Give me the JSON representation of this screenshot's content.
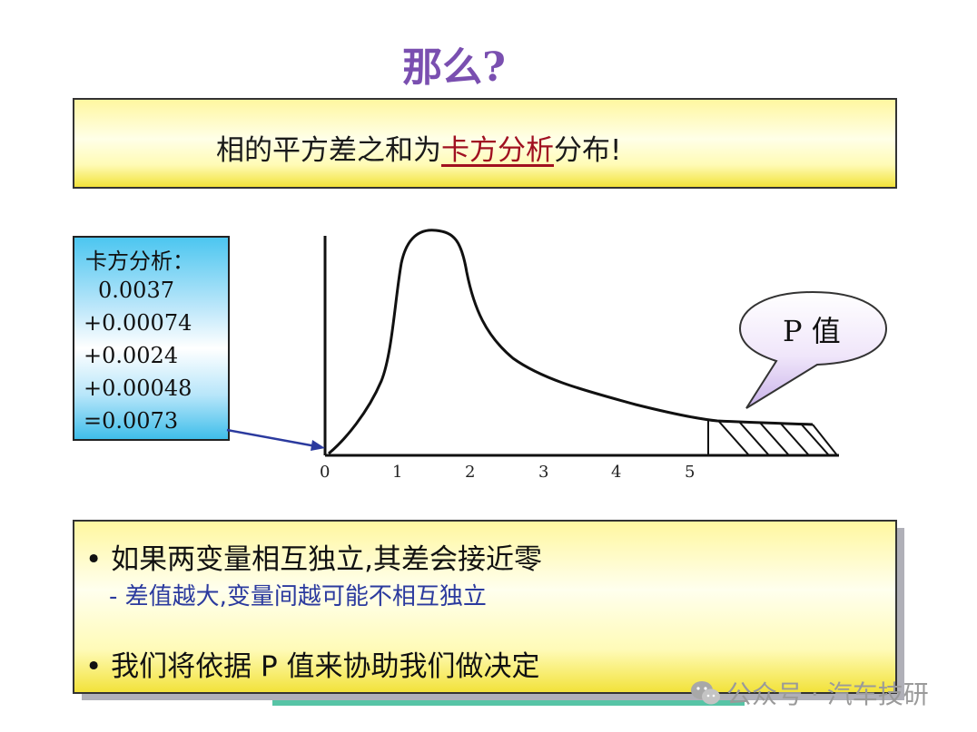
{
  "title": "那么?",
  "banner": {
    "prefix": "相的平方差之和为",
    "highlight": "卡方分析",
    "suffix": "分布!"
  },
  "chi_box": {
    "heading": "卡方分析：",
    "lines": [
      "0.0037",
      "+0.00074",
      "+0.0024",
      "+0.00048",
      "=0.0073"
    ]
  },
  "bubble": "P 值",
  "x_ticks": [
    "0",
    "1",
    "2",
    "3",
    "4",
    "5"
  ],
  "bullets": {
    "b1": "• 如果两变量相互独立,其差会接近零",
    "b2": "- 差值越大,变量间越可能不相互独立",
    "b3": "• 我们将依据 P 值来协助我们做决定"
  },
  "watermark": "公众号 · 汽车技研",
  "colors": {
    "title": "#7a4fb0",
    "highlight": "#a01020",
    "sub_bullet": "#2b3a9e"
  }
}
